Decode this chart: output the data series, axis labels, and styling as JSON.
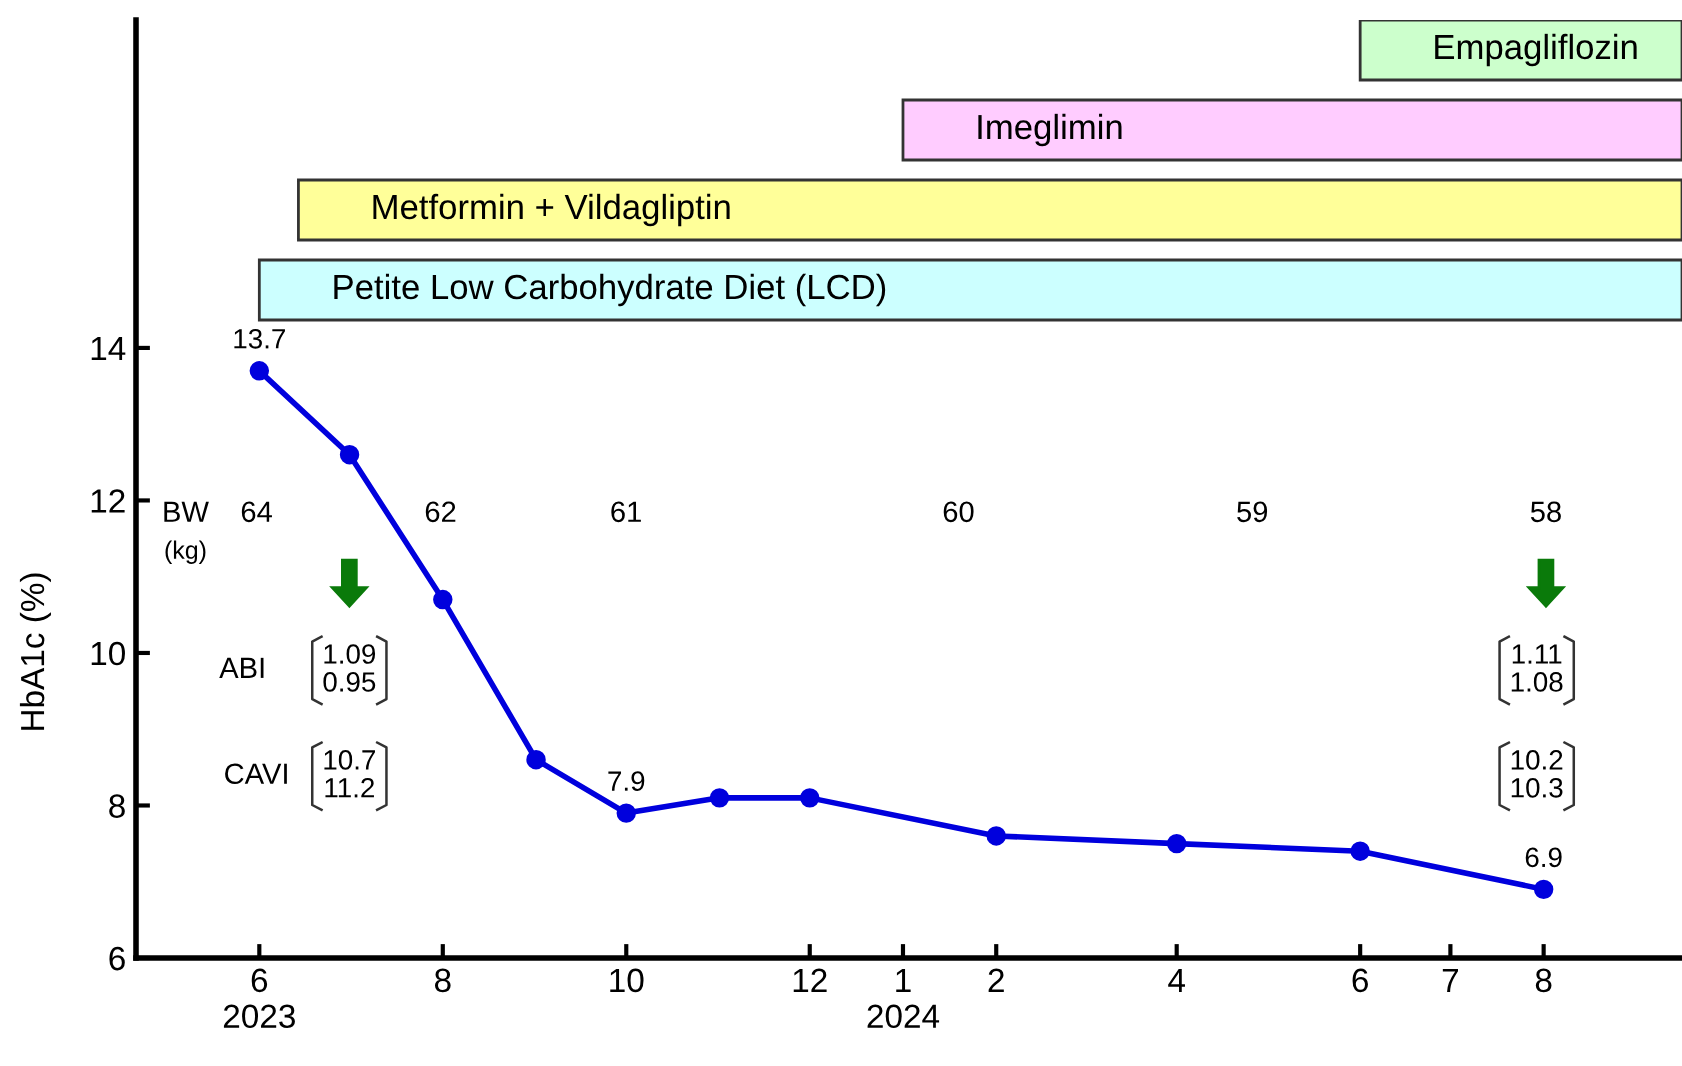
{
  "chart_data": {
    "type": "line",
    "ylabel": "HbA1c (%)",
    "x": [
      "2023-06",
      "2023-07",
      "2023-08",
      "2023-09",
      "2023-10",
      "2023-11",
      "2023-12",
      "2024-02",
      "2024-04",
      "2024-06",
      "2024-08"
    ],
    "values": [
      13.7,
      12.6,
      10.7,
      8.6,
      7.9,
      8.1,
      8.1,
      7.6,
      7.5,
      7.4,
      6.9
    ],
    "value_labels": [
      "13.7",
      null,
      null,
      null,
      "7.9",
      null,
      null,
      null,
      null,
      null,
      "6.9"
    ],
    "color": "#0000dd",
    "marker": "circle",
    "line_style": "solid",
    "xlim": [
      "2023-04-21",
      "2024-09-16"
    ],
    "xticks": [
      {
        "value": "2023-06",
        "label": "6\n2023"
      },
      {
        "value": "2023-08",
        "label": "8"
      },
      {
        "value": "2023-10",
        "label": "10"
      },
      {
        "value": "2023-12",
        "label": "12"
      },
      {
        "value": "2024-01",
        "label": "1\n2024"
      },
      {
        "value": "2024-02",
        "label": "2"
      },
      {
        "value": "2024-04",
        "label": "4"
      },
      {
        "value": "2024-06",
        "label": "6"
      },
      {
        "value": "2024-07",
        "label": "7"
      },
      {
        "value": "2024-08",
        "label": "8"
      }
    ],
    "ylim": [
      6,
      18.3
    ],
    "yticks": [
      6,
      8,
      10,
      12,
      14
    ],
    "bands": [
      {
        "axis": "x",
        "from": "2023-06-01",
        "to": "2024-09-16",
        "label": "Petite Low Carbohydrate Diet (LCD)",
        "color": "#ccffff"
      },
      {
        "axis": "x",
        "from": "2023-06-14",
        "to": "2024-09-16",
        "label": "Metformin + Vildagliptin",
        "color": "#ffff99"
      },
      {
        "axis": "x",
        "from": "2024-01-01",
        "to": "2024-09-16",
        "label": "Imeglimin",
        "color": "#ffccff"
      },
      {
        "axis": "x",
        "from": "2024-06-01",
        "to": "2024-09-16",
        "label": "Empagliflozin",
        "color": "#ccffcc"
      }
    ],
    "annotations": [
      "BW",
      "(kg)",
      "64",
      "62",
      "61",
      "60",
      "59",
      "58",
      "ABI",
      "CAVI",
      "1.09\n0.95",
      "10.7\n11.2",
      "1.11\n1.08",
      "10.2\n10.3"
    ]
  }
}
